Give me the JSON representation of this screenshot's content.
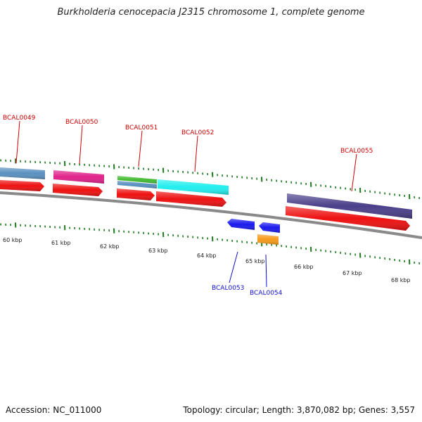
{
  "title": "Burkholderia cenocepacia J2315 chromosome 1, complete genome",
  "footer": {
    "accession": "Accession: NC_011000",
    "stats": "Topology: circular; Length: 3,870,082 bp; Genes: 3,557"
  },
  "colors": {
    "backbone": "#8a8a8a",
    "tick": "#1e7a1e",
    "cds_forward": "#ee1111",
    "upper_gene_label": "#cc0000",
    "lower_gene_label": "#1010cc",
    "gene_blue": "#1a1aee",
    "gene_orange": "#f59a1a",
    "gene_steel": "#5a90c0",
    "gene_magenta": "#e0228a",
    "gene_green": "#44bb33",
    "gene_cyan": "#22eeee",
    "gene_indigo": "#4a3f8a"
  },
  "kbp_labels": [
    "60 kbp",
    "61 kbp",
    "62 kbp",
    "63 kbp",
    "64 kbp",
    "65 kbp",
    "66 kbp",
    "67 kbp",
    "68 kbp"
  ],
  "gene_labels_upper": [
    "BCAL0049",
    "BCAL0050",
    "BCAL0051",
    "BCAL0052",
    "BCAL0055"
  ],
  "gene_labels_lower": [
    "BCAL0053",
    "BCAL0054"
  ]
}
